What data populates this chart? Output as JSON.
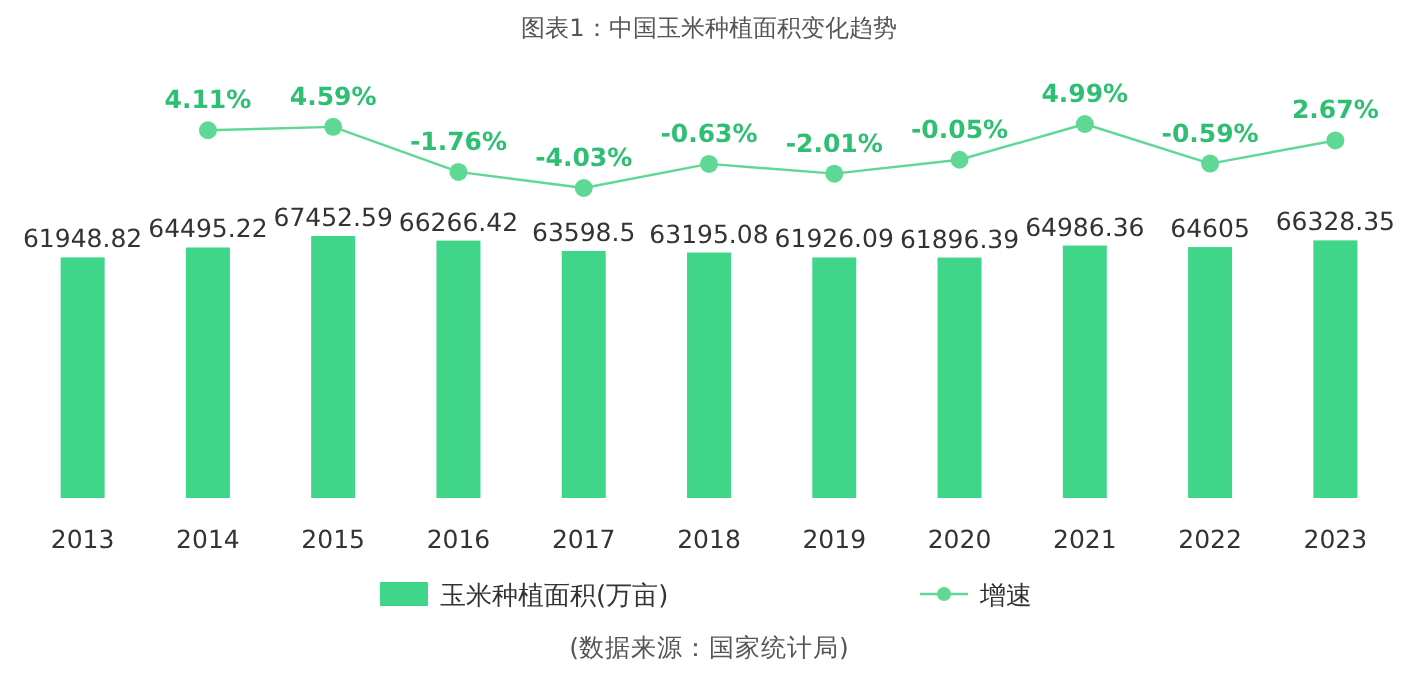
{
  "chart_data": [
    {
      "type": "bar",
      "categories": [
        "2013",
        "2014",
        "2015",
        "2016",
        "2017",
        "2018",
        "2019",
        "2020",
        "2021",
        "2022",
        "2023"
      ],
      "series": [
        {
          "name": "玉米种植面积(万亩)",
          "color": "#3fd68a",
          "values": [
            61948.82,
            64495.22,
            67452.59,
            66266.42,
            63598.5,
            63195.08,
            61926.09,
            61896.39,
            64986.36,
            64605,
            66328.35
          ]
        }
      ],
      "data_labels": true,
      "legend": "bottom",
      "annotations": [
        "(数据来源：国家统计局)"
      ]
    },
    {
      "type": "line",
      "title": "图表1：中国玉米种植面积变化趋势",
      "categories": [
        null,
        null,
        null,
        null,
        null,
        null,
        null,
        null,
        null,
        null,
        null
      ],
      "series": [
        {
          "name": "增速",
          "color": "#5fd895",
          "values": [
            null,
            4.11,
            4.59,
            -1.76,
            -4.03,
            -0.63,
            -2.01,
            -0.05,
            4.99,
            -0.59,
            2.67
          ],
          "value_labels": [
            null,
            "4.11%",
            "4.59%",
            "-1.76%",
            "-4.03%",
            "-0.63%",
            "-2.01%",
            "-0.05%",
            "4.99%",
            "-0.59%",
            "2.67%"
          ]
        }
      ],
      "marker": "circle",
      "legend": "bottom"
    }
  ]
}
